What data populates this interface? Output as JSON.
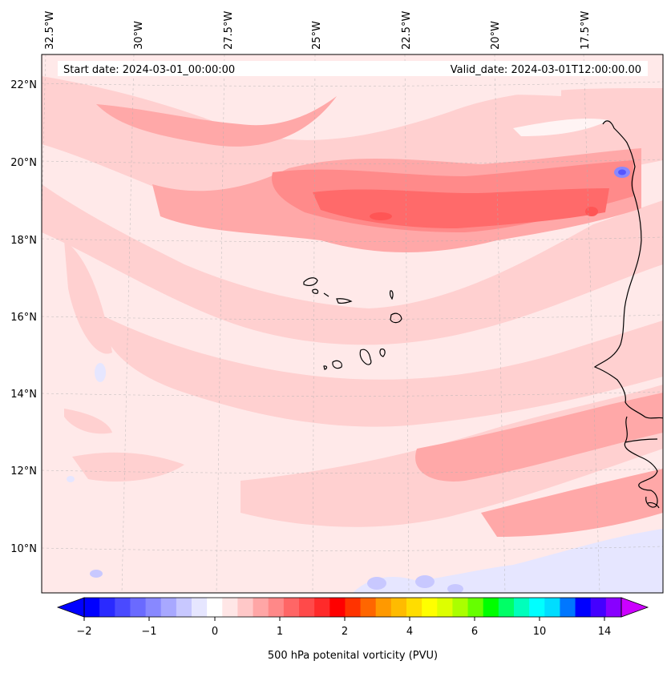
{
  "header": {
    "start_date": "Start date: 2024-03-01_00:00:00",
    "valid_date": "Valid_date: 2024-03-01T12:00:00.00"
  },
  "map": {
    "lon_labels": [
      "32.5°W",
      "30°W",
      "27.5°W",
      "25°W",
      "22.5°W",
      "20°W",
      "17.5°W"
    ],
    "lat_labels": [
      "22°N",
      "20°N",
      "18°N",
      "16°N",
      "14°N",
      "12°N",
      "10°N"
    ],
    "field": "500 hPa potential vorticity",
    "colors": {
      "background": "#ffe9e9",
      "band_light": "#ffd0d0",
      "band_mid": "#ffa8a8",
      "band_strong": "#ff8a8a",
      "band_core": "#ff6a6a",
      "negative": "#c8c8ff",
      "coast": "#000000"
    }
  },
  "colorbar": {
    "tick_labels": [
      "−2",
      "−1",
      "0",
      "1",
      "2",
      "4",
      "6",
      "10",
      "14"
    ],
    "label": "500 hPa potenital vorticity (PVU)",
    "colors": [
      "#0000ff",
      "#2a2aff",
      "#4a4aff",
      "#6a6aff",
      "#8888ff",
      "#a8a8ff",
      "#c8c8ff",
      "#e6e6ff",
      "#ffffff",
      "#ffe6e6",
      "#ffc8c8",
      "#ffa6a6",
      "#ff8888",
      "#ff6666",
      "#ff4a4a",
      "#ff2a2a",
      "#ff0000",
      "#ff3300",
      "#ff6600",
      "#ff9900",
      "#ffbb00",
      "#ffdd00",
      "#ffff00",
      "#ddff00",
      "#aaff00",
      "#66ff00",
      "#00ff00",
      "#00ff66",
      "#00ffbb",
      "#00ffff",
      "#00ddff",
      "#0077ff",
      "#0000ff",
      "#4400ff",
      "#8800ff"
    ]
  }
}
